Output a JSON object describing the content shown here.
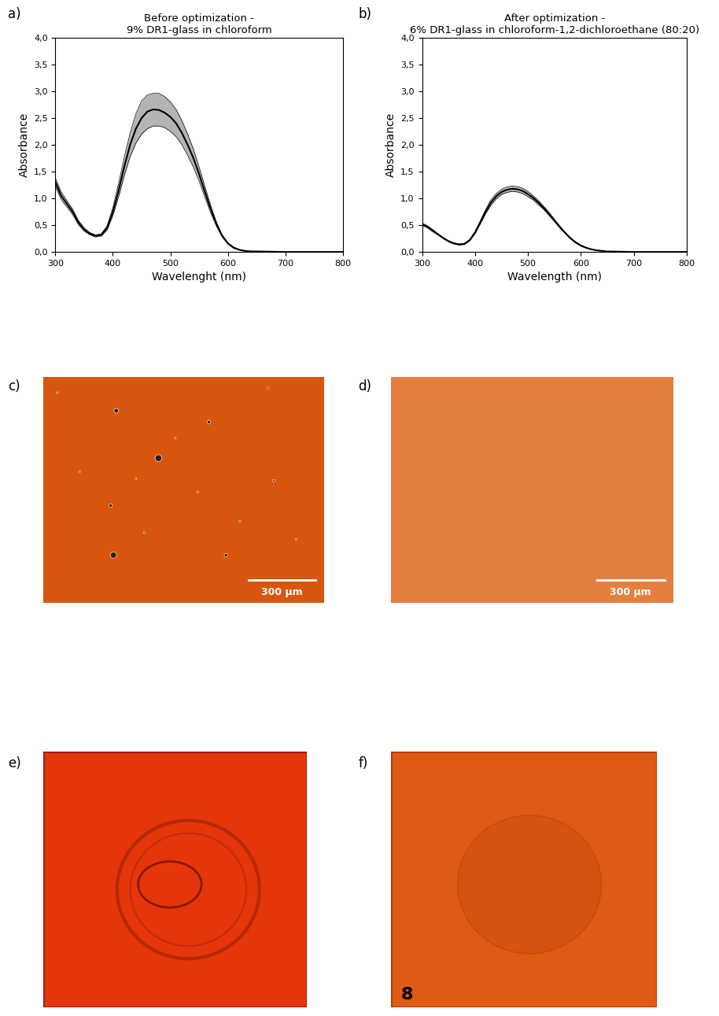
{
  "chart_data": [
    {
      "type": "line",
      "panel": "a)",
      "title": "Before optimization -\n9% DR1-glass in chloroform",
      "x_label": "Wavelenght (nm)",
      "y_label": "Absorbance",
      "x": [
        300,
        310,
        320,
        330,
        340,
        350,
        360,
        370,
        380,
        390,
        400,
        410,
        420,
        430,
        440,
        450,
        460,
        470,
        480,
        490,
        500,
        510,
        520,
        530,
        540,
        550,
        560,
        570,
        580,
        590,
        600,
        610,
        620,
        630,
        640,
        650,
        700,
        750,
        800
      ],
      "series": [
        {
          "color": "#000000",
          "values": [
            1.3,
            1.05,
            0.9,
            0.75,
            0.55,
            0.42,
            0.34,
            0.3,
            0.32,
            0.45,
            0.75,
            1.15,
            1.6,
            2.0,
            2.3,
            2.5,
            2.62,
            2.66,
            2.65,
            2.6,
            2.52,
            2.4,
            2.22,
            2.0,
            1.75,
            1.45,
            1.12,
            0.8,
            0.52,
            0.3,
            0.16,
            0.08,
            0.04,
            0.02,
            0.01,
            0.01,
            0,
            0,
            0
          ],
          "upper": [
            1.38,
            1.12,
            0.96,
            0.8,
            0.59,
            0.45,
            0.36,
            0.32,
            0.34,
            0.49,
            0.83,
            1.28,
            1.78,
            2.22,
            2.58,
            2.82,
            2.93,
            2.96,
            2.96,
            2.9,
            2.8,
            2.66,
            2.45,
            2.2,
            1.92,
            1.58,
            1.22,
            0.87,
            0.56,
            0.32,
            0.17,
            0.09,
            0.04,
            0.02,
            0.01,
            0.01,
            0,
            0,
            0
          ],
          "lower": [
            1.22,
            0.98,
            0.84,
            0.7,
            0.51,
            0.39,
            0.32,
            0.28,
            0.3,
            0.41,
            0.68,
            1.03,
            1.43,
            1.78,
            2.03,
            2.2,
            2.3,
            2.35,
            2.35,
            2.32,
            2.25,
            2.15,
            2.0,
            1.8,
            1.58,
            1.32,
            1.02,
            0.73,
            0.48,
            0.28,
            0.15,
            0.07,
            0.04,
            0.02,
            0.01,
            0.01,
            0,
            0,
            0
          ]
        }
      ],
      "xlim": [
        300,
        800
      ],
      "xticks": [
        300,
        400,
        500,
        600,
        700,
        800
      ],
      "ylim": [
        0,
        4
      ],
      "yticks": [
        {
          "value": 0,
          "label": "0,0"
        },
        {
          "value": 0.5,
          "label": "0,5"
        },
        {
          "value": 1,
          "label": "1,0"
        },
        {
          "value": 1.5,
          "label": "1,5"
        },
        {
          "value": 2,
          "label": "2,0"
        },
        {
          "value": 2.5,
          "label": "2,5"
        },
        {
          "value": 3,
          "label": "3,0"
        },
        {
          "value": 3.5,
          "label": "3,5"
        },
        {
          "value": 4,
          "label": "4,0"
        }
      ],
      "grid": false
    },
    {
      "type": "line",
      "panel": "b)",
      "title": "After optimization -\n6% DR1-glass in chloroform-1,2-dichloroethane (80:20)",
      "x_label": "Wavelength (nm)",
      "y_label": "Absorbance",
      "x": [
        300,
        310,
        320,
        330,
        340,
        350,
        360,
        370,
        380,
        390,
        400,
        410,
        420,
        430,
        440,
        450,
        460,
        470,
        480,
        490,
        500,
        510,
        520,
        530,
        540,
        550,
        560,
        570,
        580,
        590,
        600,
        610,
        620,
        630,
        640,
        650,
        700,
        750,
        800
      ],
      "series": [
        {
          "color": "#000000",
          "values": [
            0.52,
            0.47,
            0.4,
            0.33,
            0.26,
            0.2,
            0.16,
            0.14,
            0.15,
            0.22,
            0.36,
            0.55,
            0.75,
            0.92,
            1.04,
            1.12,
            1.16,
            1.18,
            1.17,
            1.14,
            1.08,
            1.01,
            0.92,
            0.82,
            0.71,
            0.59,
            0.47,
            0.36,
            0.26,
            0.18,
            0.12,
            0.08,
            0.05,
            0.03,
            0.02,
            0.01,
            0,
            0,
            0
          ],
          "upper": [
            0.54,
            0.49,
            0.42,
            0.34,
            0.27,
            0.21,
            0.17,
            0.15,
            0.16,
            0.23,
            0.38,
            0.58,
            0.79,
            0.97,
            1.09,
            1.17,
            1.21,
            1.23,
            1.22,
            1.19,
            1.13,
            1.05,
            0.96,
            0.85,
            0.74,
            0.61,
            0.49,
            0.37,
            0.27,
            0.19,
            0.13,
            0.08,
            0.05,
            0.03,
            0.02,
            0.01,
            0,
            0,
            0
          ],
          "lower": [
            0.5,
            0.45,
            0.38,
            0.32,
            0.25,
            0.19,
            0.15,
            0.13,
            0.14,
            0.21,
            0.34,
            0.52,
            0.71,
            0.87,
            0.99,
            1.07,
            1.11,
            1.13,
            1.12,
            1.09,
            1.03,
            0.97,
            0.88,
            0.79,
            0.68,
            0.57,
            0.45,
            0.35,
            0.25,
            0.17,
            0.11,
            0.07,
            0.05,
            0.03,
            0.02,
            0.01,
            0,
            0,
            0
          ]
        }
      ],
      "xlim": [
        300,
        800
      ],
      "xticks": [
        300,
        400,
        500,
        600,
        700,
        800
      ],
      "ylim": [
        0,
        4
      ],
      "yticks": [
        {
          "value": 0,
          "label": "0,0"
        },
        {
          "value": 0.5,
          "label": "0,5"
        },
        {
          "value": 1,
          "label": "1,0"
        },
        {
          "value": 1.5,
          "label": "1,5"
        },
        {
          "value": 2,
          "label": "2,0"
        },
        {
          "value": 2.5,
          "label": "2,5"
        },
        {
          "value": 3,
          "label": "3,0"
        },
        {
          "value": 3.5,
          "label": "3,5"
        },
        {
          "value": 4,
          "label": "4,0"
        }
      ],
      "grid": false
    }
  ],
  "images": [
    {
      "panel": "c)",
      "color": "#d9560e",
      "scale_bar": "300 µm"
    },
    {
      "panel": "d)",
      "color": "#e3803f",
      "scale_bar": "300 µm"
    },
    {
      "panel": "e)",
      "color": "#e5350b"
    },
    {
      "panel": "f)",
      "color": "#df5a12",
      "marking": "8"
    }
  ]
}
